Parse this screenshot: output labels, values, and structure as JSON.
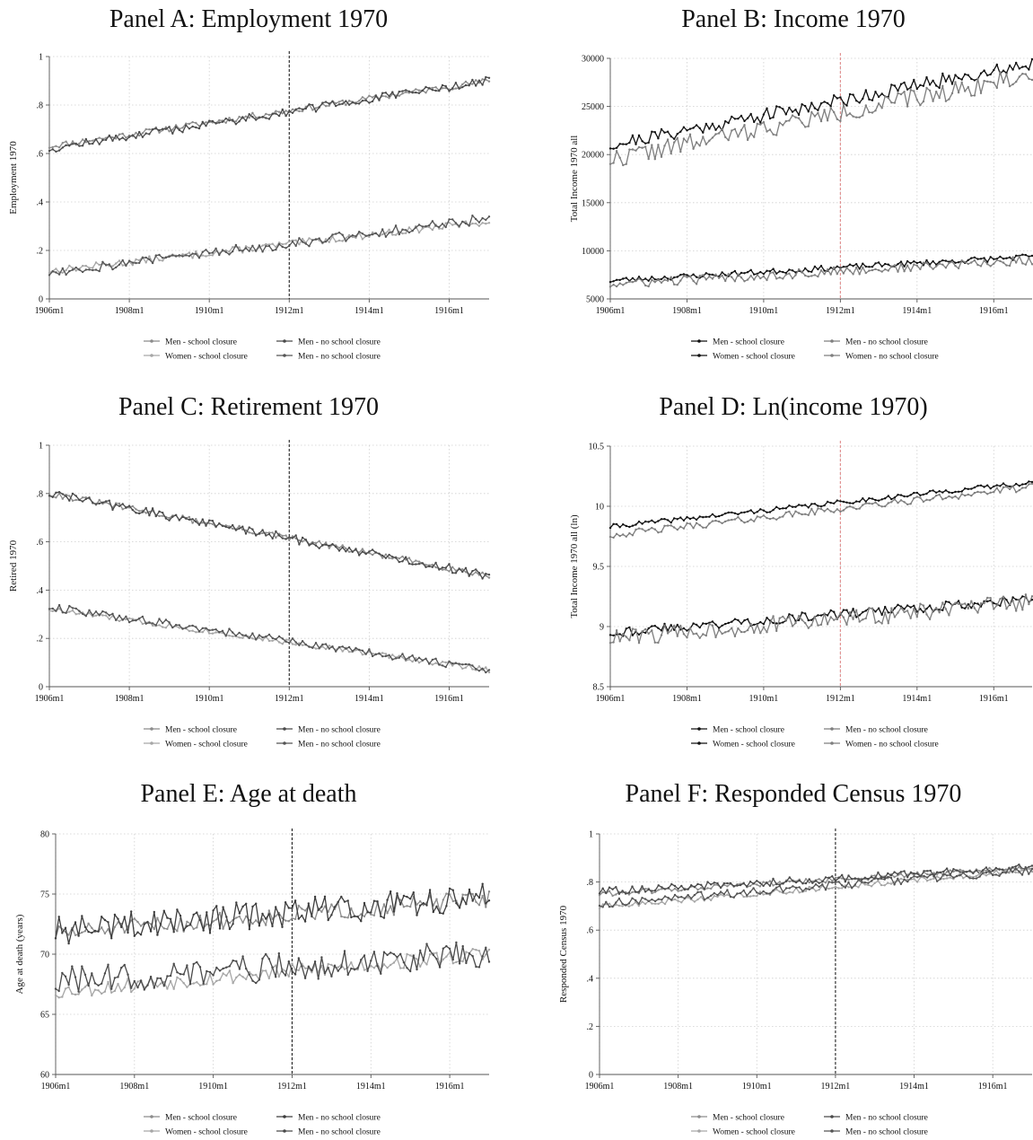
{
  "chart_data": [
    {
      "type": "line",
      "title": "Panel A: Employment 1970",
      "ylabel": "Employment 1970",
      "xlabel": "",
      "xlim": [
        "1906m1",
        "1917m1"
      ],
      "ylim": [
        0,
        1
      ],
      "yticks": [
        {
          "v": 0,
          "label": "0"
        },
        {
          "v": 0.2,
          "label": ".2"
        },
        {
          "v": 0.4,
          "label": ".4"
        },
        {
          "v": 0.6,
          "label": ".6"
        },
        {
          "v": 0.8,
          "label": ".8"
        },
        {
          "v": 1,
          "label": "1"
        }
      ],
      "xticks": [
        "1906m1",
        "1908m1",
        "1910m1",
        "1912m1",
        "1914m1",
        "1916m1"
      ],
      "vline": "1912m1",
      "vline_color": "#222222",
      "grid": true,
      "legend_position": "bottom",
      "series": [
        {
          "name": "Men - school closure",
          "color": "#8c8c8c",
          "start": 0.63,
          "end": 0.9,
          "noise": 0.008,
          "seed": 11
        },
        {
          "name": "Men - no school closure",
          "color": "#4a4a4a",
          "start": 0.62,
          "end": 0.9,
          "noise": 0.011,
          "seed": 12
        },
        {
          "name": "Women - school closure",
          "color": "#a6a6a6",
          "start": 0.115,
          "end": 0.32,
          "noise": 0.009,
          "seed": 13
        },
        {
          "name": "Men - no school closure",
          "color": "#555555",
          "start": 0.11,
          "end": 0.33,
          "noise": 0.014,
          "seed": 14
        }
      ]
    },
    {
      "type": "line",
      "title": "Panel B: Income 1970",
      "ylabel": "Total Income 1970 all",
      "xlabel": "",
      "xlim": [
        "1906m1",
        "1917m1"
      ],
      "ylim": [
        5000,
        30000
      ],
      "yticks": [
        {
          "v": 5000,
          "label": "5000"
        },
        {
          "v": 10000,
          "label": "10000"
        },
        {
          "v": 15000,
          "label": "15000"
        },
        {
          "v": 20000,
          "label": "20000"
        },
        {
          "v": 25000,
          "label": "25000"
        },
        {
          "v": 30000,
          "label": "30000"
        }
      ],
      "xticks": [
        "1906m1",
        "1908m1",
        "1910m1",
        "1912m1",
        "1914m1",
        "1916m1"
      ],
      "vline": "1912m1",
      "vline_color": "#e08a8a",
      "grid": true,
      "legend_position": "bottom",
      "series": [
        {
          "name": "Men - school closure",
          "color": "#111111",
          "start": 21000,
          "end": 29500,
          "noise": 450,
          "seed": 21
        },
        {
          "name": "Men - no school closure",
          "color": "#7f7f7f",
          "start": 19500,
          "end": 28300,
          "noise": 600,
          "seed": 22
        },
        {
          "name": "Women - school closure",
          "color": "#111111",
          "start": 6900,
          "end": 9400,
          "noise": 180,
          "seed": 23
        },
        {
          "name": "Women - no school closure",
          "color": "#7f7f7f",
          "start": 6500,
          "end": 9000,
          "noise": 300,
          "seed": 24
        }
      ]
    },
    {
      "type": "line",
      "title": "Panel C: Retirement 1970",
      "ylabel": "Retired 1970",
      "xlabel": "",
      "xlim": [
        "1906m1",
        "1917m1"
      ],
      "ylim": [
        0,
        1
      ],
      "yticks": [
        {
          "v": 0,
          "label": "0"
        },
        {
          "v": 0.2,
          "label": ".2"
        },
        {
          "v": 0.4,
          "label": ".4"
        },
        {
          "v": 0.6,
          "label": ".6"
        },
        {
          "v": 0.8,
          "label": ".8"
        },
        {
          "v": 1,
          "label": "1"
        }
      ],
      "xticks": [
        "1906m1",
        "1908m1",
        "1910m1",
        "1912m1",
        "1914m1",
        "1916m1"
      ],
      "vline": "1912m1",
      "vline_color": "#222222",
      "grid": true,
      "legend_position": "bottom",
      "series": [
        {
          "name": "Men - school closure",
          "color": "#8c8c8c",
          "start": 0.8,
          "end": 0.46,
          "noise": 0.008,
          "seed": 31
        },
        {
          "name": "Men - no school closure",
          "color": "#4a4a4a",
          "start": 0.8,
          "end": 0.46,
          "noise": 0.012,
          "seed": 32
        },
        {
          "name": "Women - school closure",
          "color": "#a6a6a6",
          "start": 0.32,
          "end": 0.07,
          "noise": 0.007,
          "seed": 33
        },
        {
          "name": "Men - no school closure",
          "color": "#555555",
          "start": 0.33,
          "end": 0.07,
          "noise": 0.01,
          "seed": 34
        }
      ]
    },
    {
      "type": "line",
      "title": "Panel D: Ln(income 1970)",
      "ylabel": "Total Income 1970 all (ln)",
      "xlabel": "",
      "xlim": [
        "1906m1",
        "1917m1"
      ],
      "ylim": [
        8.5,
        10.5
      ],
      "yticks": [
        {
          "v": 8.5,
          "label": "8.5"
        },
        {
          "v": 9,
          "label": "9"
        },
        {
          "v": 9.5,
          "label": "9.5"
        },
        {
          "v": 10,
          "label": "10"
        },
        {
          "v": 10.5,
          "label": "10.5"
        }
      ],
      "xticks": [
        "1906m1",
        "1908m1",
        "1910m1",
        "1912m1",
        "1914m1",
        "1916m1"
      ],
      "vline": "1912m1",
      "vline_color": "#e08a8a",
      "grid": true,
      "legend_position": "bottom",
      "series": [
        {
          "name": "Men - school closure",
          "color": "#111111",
          "start": 9.83,
          "end": 10.2,
          "noise": 0.012,
          "seed": 41
        },
        {
          "name": "Men - no school closure",
          "color": "#7f7f7f",
          "start": 9.76,
          "end": 10.16,
          "noise": 0.018,
          "seed": 42
        },
        {
          "name": "Women - school closure",
          "color": "#111111",
          "start": 8.95,
          "end": 9.23,
          "noise": 0.025,
          "seed": 43
        },
        {
          "name": "Women - no school closure",
          "color": "#7f7f7f",
          "start": 8.9,
          "end": 9.2,
          "noise": 0.045,
          "seed": 44
        }
      ]
    },
    {
      "type": "line",
      "title": "Panel E: Age at death",
      "ylabel": "Age at death (years)",
      "xlabel": "",
      "xlim": [
        "1906m1",
        "1917m1"
      ],
      "ylim": [
        60,
        80
      ],
      "yticks": [
        {
          "v": 60,
          "label": "60"
        },
        {
          "v": 65,
          "label": "65"
        },
        {
          "v": 70,
          "label": "70"
        },
        {
          "v": 75,
          "label": "75"
        },
        {
          "v": 80,
          "label": "80"
        }
      ],
      "xticks": [
        "1906m1",
        "1908m1",
        "1910m1",
        "1912m1",
        "1914m1",
        "1916m1"
      ],
      "vline": "1912m1",
      "vline_color": "#222222",
      "grid": true,
      "legend_position": "bottom",
      "series": [
        {
          "name": "Men - school closure",
          "color": "#8c8c8c",
          "start": 71.7,
          "end": 74.6,
          "noise": 0.45,
          "seed": 51
        },
        {
          "name": "Men - no school closure",
          "color": "#3d3d3d",
          "start": 71.9,
          "end": 74.8,
          "noise": 0.75,
          "seed": 52
        },
        {
          "name": "Women - school closure",
          "color": "#a6a6a6",
          "start": 66.9,
          "end": 70.0,
          "noise": 0.4,
          "seed": 53
        },
        {
          "name": "Men - no school closure",
          "color": "#4a4a4a",
          "start": 67.7,
          "end": 70.0,
          "noise": 0.75,
          "seed": 54
        }
      ]
    },
    {
      "type": "line",
      "title": "Panel F: Responded Census 1970",
      "ylabel": "Responded Census 1970",
      "xlabel": "",
      "xlim": [
        "1906m1",
        "1917m1"
      ],
      "ylim": [
        0,
        1
      ],
      "yticks": [
        {
          "v": 0,
          "label": "0"
        },
        {
          "v": 0.2,
          "label": ".2"
        },
        {
          "v": 0.4,
          "label": ".4"
        },
        {
          "v": 0.6,
          "label": ".6"
        },
        {
          "v": 0.8,
          "label": ".8"
        },
        {
          "v": 1,
          "label": "1"
        }
      ],
      "xticks": [
        "1906m1",
        "1908m1",
        "1910m1",
        "1912m1",
        "1914m1",
        "1916m1"
      ],
      "vline": "1912m1",
      "vline_color": "#222222",
      "grid": true,
      "legend_position": "bottom",
      "series": [
        {
          "name": "Men - school closure",
          "color": "#8c8c8c",
          "start": 0.75,
          "end": 0.86,
          "noise": 0.007,
          "seed": 61
        },
        {
          "name": "Men - no school closure",
          "color": "#4a4a4a",
          "start": 0.76,
          "end": 0.86,
          "noise": 0.01,
          "seed": 62
        },
        {
          "name": "Women - school closure",
          "color": "#a6a6a6",
          "start": 0.695,
          "end": 0.85,
          "noise": 0.007,
          "seed": 63
        },
        {
          "name": "Men - no school closure",
          "color": "#555555",
          "start": 0.71,
          "end": 0.85,
          "noise": 0.011,
          "seed": 64
        }
      ]
    }
  ]
}
